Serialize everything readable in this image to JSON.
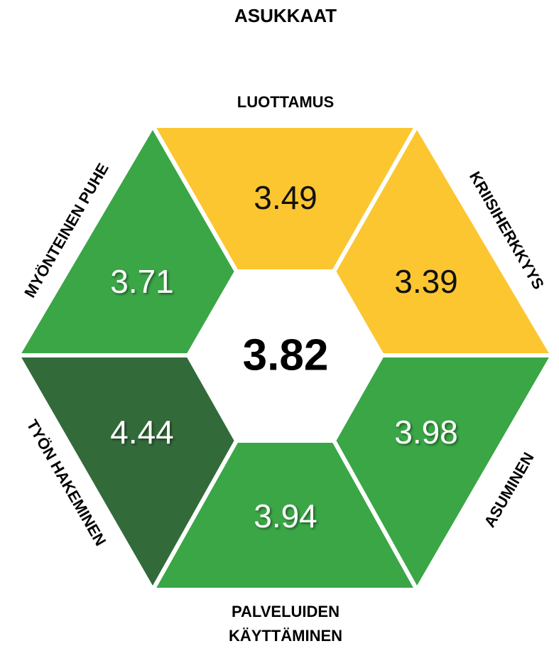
{
  "title": "ASUKKAAT",
  "center_value": 3.82,
  "segments": [
    {
      "label": [
        "LUOTTAMUS"
      ],
      "value": 3.49,
      "color": "#fcc631"
    },
    {
      "label": [
        "KRIISIHERKKYYS"
      ],
      "value": 3.39,
      "color": "#fcc631"
    },
    {
      "label": [
        "ASUMINEN"
      ],
      "value": 3.98,
      "color": "#3aa646"
    },
    {
      "label": [
        "PALVELUIDEN",
        "KÄYTTÄMINEN"
      ],
      "value": 3.94,
      "color": "#3aa646"
    },
    {
      "label": [
        "TYÖN HAKEMINEN"
      ],
      "value": 4.44,
      "color": "#336a39"
    },
    {
      "label": [
        "MYÖNTEINEN PUHE"
      ],
      "value": 3.71,
      "color": "#3aa646"
    }
  ]
}
